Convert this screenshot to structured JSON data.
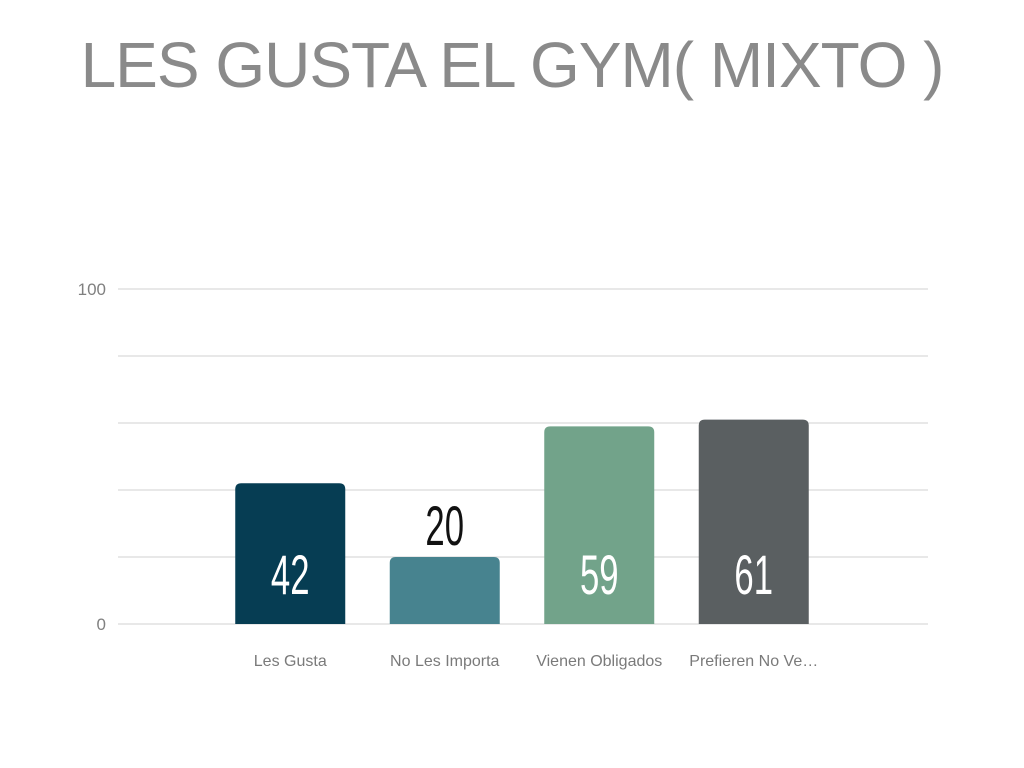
{
  "title": "LES GUSTA EL GYM( MIXTO )",
  "chart_data": {
    "type": "bar",
    "title": "LES GUSTA EL GYM( MIXTO )",
    "categories": [
      "Les Gusta",
      "No Les Importa",
      "Vienen Obligados",
      "Prefieren No Ve…"
    ],
    "values": [
      42,
      20,
      59,
      61
    ],
    "colors": [
      "#063d53",
      "#47838f",
      "#72a38a",
      "#5a5f61"
    ],
    "label_colors": [
      "#ffffff",
      "#111111",
      "#ffffff",
      "#ffffff"
    ],
    "y_ticks": [
      "0",
      "100"
    ],
    "ylim": [
      0,
      100
    ],
    "grid": true,
    "legend": "none"
  }
}
